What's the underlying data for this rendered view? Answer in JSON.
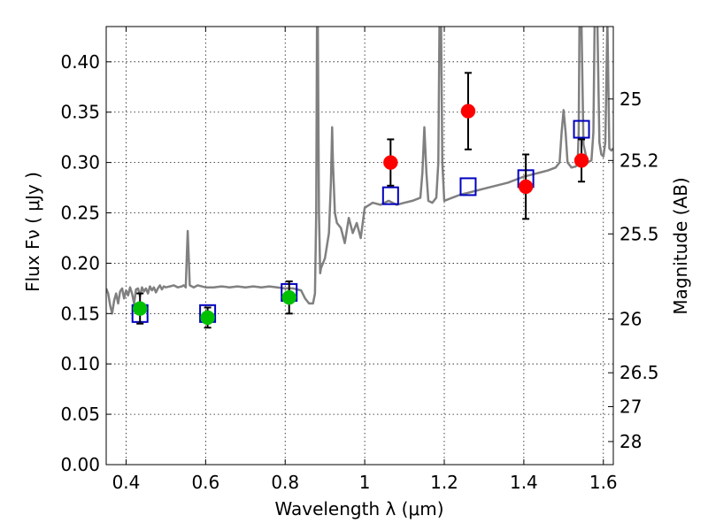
{
  "chart_data": {
    "type": "scatter",
    "title": "",
    "xlabel": "Wavelength  λ (μm)",
    "ylabel": "Flux  Fν  ( μJy )",
    "y2label": "Magnitude (AB)",
    "xlim": [
      0.35,
      1.625
    ],
    "ylim": [
      0.0,
      0.435
    ],
    "grid": true,
    "colors": {
      "model": "#808080",
      "optical": "#00c000",
      "nir": "#ff0000",
      "model_points": "#0000c0",
      "errorbar": "#000000"
    },
    "x_ticks": [
      {
        "value": 0.4,
        "label": "0.4"
      },
      {
        "value": 0.6,
        "label": "0.6"
      },
      {
        "value": 0.8,
        "label": "0.8"
      },
      {
        "value": 1.0,
        "label": "1"
      },
      {
        "value": 1.2,
        "label": "1.2"
      },
      {
        "value": 1.4,
        "label": "1.4"
      },
      {
        "value": 1.6,
        "label": "1.6"
      }
    ],
    "y_ticks": [
      {
        "value": 0.0,
        "label": "0.00"
      },
      {
        "value": 0.05,
        "label": "0.05"
      },
      {
        "value": 0.1,
        "label": "0.10"
      },
      {
        "value": 0.15,
        "label": "0.15"
      },
      {
        "value": 0.2,
        "label": "0.20"
      },
      {
        "value": 0.25,
        "label": "0.25"
      },
      {
        "value": 0.3,
        "label": "0.30"
      },
      {
        "value": 0.35,
        "label": "0.35"
      },
      {
        "value": 0.4,
        "label": "0.40"
      }
    ],
    "mag_ticks": [
      {
        "mag": 25,
        "label": "25"
      },
      {
        "mag": 25.2,
        "label": "25.2"
      },
      {
        "mag": 25.5,
        "label": "25.5"
      },
      {
        "mag": 26,
        "label": "26"
      },
      {
        "mag": 26.5,
        "label": "26.5"
      },
      {
        "mag": 27,
        "label": "27"
      },
      {
        "mag": 28,
        "label": "28"
      }
    ],
    "series": [
      {
        "kind": "model_spectrum",
        "x": [
          0.35,
          0.355,
          0.36,
          0.365,
          0.37,
          0.375,
          0.38,
          0.385,
          0.39,
          0.395,
          0.4,
          0.405,
          0.41,
          0.415,
          0.42,
          0.425,
          0.43,
          0.435,
          0.44,
          0.445,
          0.45,
          0.455,
          0.46,
          0.465,
          0.47,
          0.475,
          0.48,
          0.485,
          0.49,
          0.495,
          0.5,
          0.51,
          0.52,
          0.53,
          0.54,
          0.545,
          0.55,
          0.552,
          0.555,
          0.558,
          0.56,
          0.57,
          0.58,
          0.59,
          0.6,
          0.62,
          0.64,
          0.66,
          0.68,
          0.7,
          0.72,
          0.74,
          0.76,
          0.78,
          0.8,
          0.82,
          0.84,
          0.85,
          0.86,
          0.87,
          0.875,
          0.878,
          0.88,
          0.882,
          0.885,
          0.888,
          0.89,
          0.9,
          0.91,
          0.915,
          0.918,
          0.92,
          0.925,
          0.93,
          0.94,
          0.95,
          0.96,
          0.97,
          0.98,
          0.99,
          1.0,
          1.02,
          1.04,
          1.06,
          1.08,
          1.1,
          1.12,
          1.14,
          1.145,
          1.15,
          1.155,
          1.16,
          1.17,
          1.18,
          1.185,
          1.188,
          1.19,
          1.192,
          1.195,
          1.2,
          1.22,
          1.24,
          1.26,
          1.28,
          1.3,
          1.32,
          1.34,
          1.36,
          1.38,
          1.4,
          1.42,
          1.44,
          1.46,
          1.48,
          1.49,
          1.495,
          1.5,
          1.505,
          1.51,
          1.52,
          1.53,
          1.535,
          1.538,
          1.54,
          1.545,
          1.55,
          1.56,
          1.57,
          1.575,
          1.578,
          1.58,
          1.585,
          1.59,
          1.595,
          1.6,
          1.605,
          1.61,
          1.615,
          1.62,
          1.625
        ],
        "y": [
          0.175,
          0.17,
          0.158,
          0.15,
          0.163,
          0.17,
          0.16,
          0.172,
          0.175,
          0.165,
          0.173,
          0.168,
          0.176,
          0.17,
          0.16,
          0.174,
          0.175,
          0.167,
          0.176,
          0.172,
          0.175,
          0.17,
          0.177,
          0.173,
          0.176,
          0.171,
          0.175,
          0.178,
          0.174,
          0.177,
          0.176,
          0.177,
          0.178,
          0.176,
          0.177,
          0.178,
          0.176,
          0.2,
          0.232,
          0.2,
          0.178,
          0.176,
          0.178,
          0.177,
          0.176,
          0.176,
          0.177,
          0.176,
          0.177,
          0.176,
          0.177,
          0.176,
          0.177,
          0.176,
          0.175,
          0.175,
          0.173,
          0.165,
          0.16,
          0.16,
          0.17,
          0.25,
          0.44,
          0.44,
          0.25,
          0.19,
          0.195,
          0.205,
          0.23,
          0.28,
          0.335,
          0.3,
          0.25,
          0.24,
          0.235,
          0.22,
          0.245,
          0.23,
          0.24,
          0.225,
          0.255,
          0.26,
          0.258,
          0.262,
          0.258,
          0.26,
          0.262,
          0.265,
          0.29,
          0.335,
          0.29,
          0.262,
          0.26,
          0.265,
          0.3,
          0.44,
          0.44,
          0.44,
          0.3,
          0.262,
          0.265,
          0.268,
          0.27,
          0.272,
          0.274,
          0.276,
          0.278,
          0.28,
          0.283,
          0.286,
          0.288,
          0.29,
          0.292,
          0.295,
          0.3,
          0.33,
          0.352,
          0.33,
          0.3,
          0.295,
          0.296,
          0.298,
          0.33,
          0.44,
          0.44,
          0.318,
          0.3,
          0.302,
          0.33,
          0.44,
          0.44,
          0.44,
          0.32,
          0.308,
          0.306,
          0.32,
          0.44,
          0.314,
          0.312,
          0.314
        ]
      },
      {
        "kind": "model_points",
        "marker": "open-square",
        "x": [
          0.435,
          0.605,
          0.81,
          1.065,
          1.26,
          1.405,
          1.545
        ],
        "y": [
          0.15,
          0.15,
          0.171,
          0.267,
          0.276,
          0.284,
          0.333
        ]
      },
      {
        "kind": "optical_photometry",
        "marker": "filled-circle",
        "x": [
          0.435,
          0.605,
          0.81
        ],
        "y": [
          0.155,
          0.146,
          0.166
        ],
        "yerr": [
          0.015,
          0.01,
          0.016
        ]
      },
      {
        "kind": "nir_photometry",
        "marker": "filled-circle",
        "x": [
          1.065,
          1.26,
          1.405,
          1.545
        ],
        "y": [
          0.3,
          0.351,
          0.276,
          0.302
        ],
        "yerr": [
          0.023,
          0.038,
          0.032,
          0.021
        ]
      }
    ]
  }
}
